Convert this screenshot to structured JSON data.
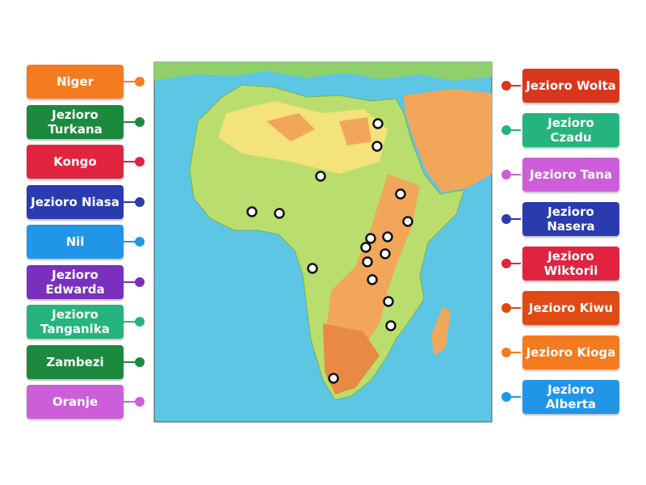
{
  "left_labels": [
    {
      "text": "Niger",
      "color": "#f47b20"
    },
    {
      "text": "Jezioro Turkana",
      "color": "#1b8a3e"
    },
    {
      "text": "Kongo",
      "color": "#e0243f"
    },
    {
      "text": "Jezioro Niasa",
      "color": "#2a3bb0"
    },
    {
      "text": "Nil",
      "color": "#2196e8"
    },
    {
      "text": "Jezioro Edwarda",
      "color": "#7b2fbe"
    },
    {
      "text": "Jezioro Tanganika",
      "color": "#25b47e"
    },
    {
      "text": "Zambezi",
      "color": "#1b8a3e"
    },
    {
      "text": "Oranje",
      "color": "#cc5ed9"
    }
  ],
  "right_labels": [
    {
      "text": "Jezioro Wolta",
      "color": "#d9361c"
    },
    {
      "text": "Jezioro Czadu",
      "color": "#25b47e"
    },
    {
      "text": "Jezioro Tana",
      "color": "#cc5ed9"
    },
    {
      "text": "Jezioro Nasera",
      "color": "#2a3bb0"
    },
    {
      "text": "Jezioro Wiktorii",
      "color": "#e0243f"
    },
    {
      "text": "Jezioro Kiwu",
      "color": "#e04a15"
    },
    {
      "text": "Jezioro Kioga",
      "color": "#f47b20"
    },
    {
      "text": "Jezioro Alberta",
      "color": "#2196e8"
    }
  ]
}
